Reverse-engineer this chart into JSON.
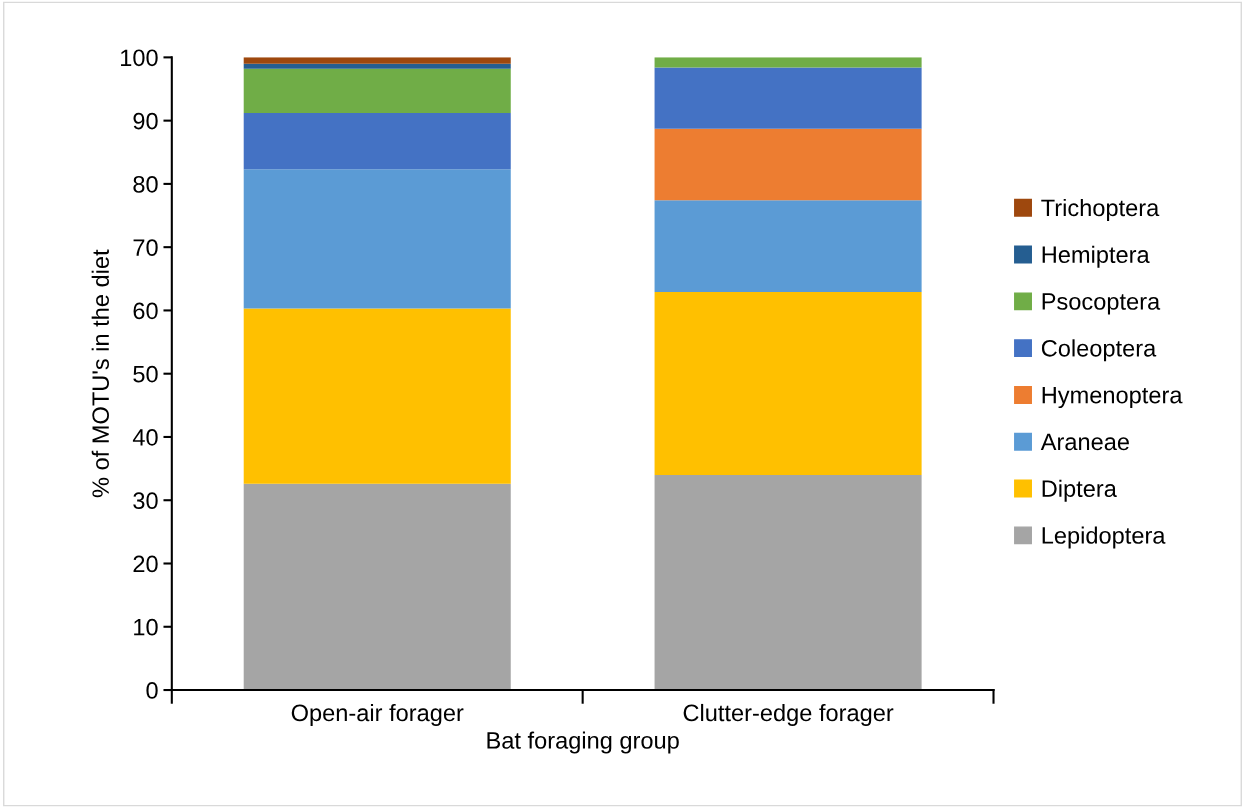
{
  "chart_data": {
    "type": "bar",
    "stacked": true,
    "xlabel": "Bat foraging group",
    "ylabel": "% of MOTU's in the diet",
    "categories": [
      "Open-air forager",
      "Clutter-edge forager"
    ],
    "series": [
      {
        "name": "Lepidoptera",
        "color": "#a5a5a5",
        "values": [
          32.6,
          34.0
        ]
      },
      {
        "name": "Diptera",
        "color": "#ffc000",
        "values": [
          27.7,
          28.9
        ]
      },
      {
        "name": "Araneae",
        "color": "#5b9bd5",
        "values": [
          22.0,
          14.5
        ]
      },
      {
        "name": "Hymenoptera",
        "color": "#ed7d31",
        "values": [
          0,
          11.3
        ]
      },
      {
        "name": "Coleoptera",
        "color": "#4472c4",
        "values": [
          8.9,
          9.7
        ]
      },
      {
        "name": "Psocoptera",
        "color": "#70ad47",
        "values": [
          7.0,
          1.6
        ]
      },
      {
        "name": "Hemiptera",
        "color": "#255e91",
        "values": [
          0.8,
          0
        ]
      },
      {
        "name": "Trichoptera",
        "color": "#9e480e",
        "values": [
          1.0,
          0
        ]
      }
    ],
    "ylim": [
      0,
      100
    ],
    "yticks": [
      0,
      10,
      20,
      30,
      40,
      50,
      60,
      70,
      80,
      90,
      100
    ],
    "grid": false,
    "legend": "right"
  }
}
